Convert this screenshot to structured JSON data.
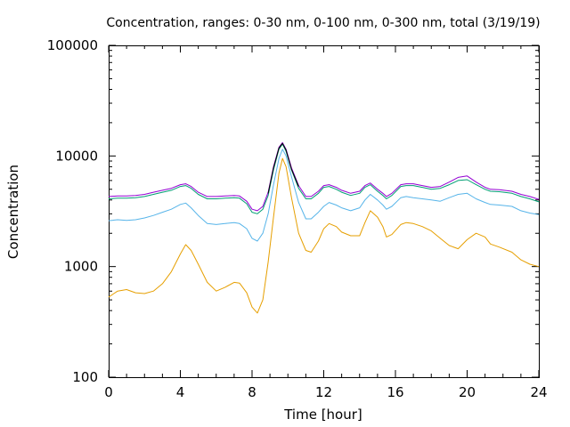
{
  "chart_data": {
    "type": "line",
    "title": "Concentration, ranges: 0-30 nm, 0-100 nm, 0-300 nm, total (3/19/19)",
    "xlabel": "Time [hour]",
    "ylabel": "Concentration",
    "xlim": [
      0,
      24
    ],
    "ylim": [
      100,
      100000
    ],
    "yscale": "log",
    "grid": false,
    "legend": "none",
    "xticks": [
      0,
      4,
      8,
      12,
      16,
      20,
      24
    ],
    "xtick_labels": [
      "0",
      "4",
      "8",
      "12",
      "16",
      "20",
      "24"
    ],
    "yticks": [
      100,
      1000,
      10000,
      100000
    ],
    "ytick_labels": [
      "100",
      "1000",
      "10000",
      "100000"
    ],
    "series": [
      {
        "color": "#e69f00",
        "points": [
          [
            0,
            530
          ],
          [
            0.5,
            600
          ],
          [
            1,
            620
          ],
          [
            1.5,
            580
          ],
          [
            2,
            570
          ],
          [
            2.5,
            600
          ],
          [
            3,
            700
          ],
          [
            3.5,
            900
          ],
          [
            4,
            1300
          ],
          [
            4.3,
            1580
          ],
          [
            4.6,
            1400
          ],
          [
            5,
            1050
          ],
          [
            5.5,
            720
          ],
          [
            6,
            600
          ],
          [
            6.5,
            650
          ],
          [
            7,
            720
          ],
          [
            7.3,
            710
          ],
          [
            7.7,
            580
          ],
          [
            8,
            430
          ],
          [
            8.3,
            380
          ],
          [
            8.6,
            500
          ],
          [
            8.9,
            1100
          ],
          [
            9.2,
            2800
          ],
          [
            9.5,
            7000
          ],
          [
            9.7,
            9500
          ],
          [
            9.9,
            8000
          ],
          [
            10.2,
            4200
          ],
          [
            10.6,
            2000
          ],
          [
            11,
            1400
          ],
          [
            11.3,
            1350
          ],
          [
            11.7,
            1700
          ],
          [
            12,
            2200
          ],
          [
            12.3,
            2450
          ],
          [
            12.7,
            2300
          ],
          [
            13,
            2050
          ],
          [
            13.5,
            1900
          ],
          [
            14,
            1900
          ],
          [
            14.3,
            2500
          ],
          [
            14.6,
            3200
          ],
          [
            15,
            2800
          ],
          [
            15.3,
            2300
          ],
          [
            15.5,
            1850
          ],
          [
            15.8,
            1950
          ],
          [
            16.3,
            2400
          ],
          [
            16.6,
            2500
          ],
          [
            17,
            2450
          ],
          [
            17.5,
            2300
          ],
          [
            18,
            2100
          ],
          [
            18.5,
            1800
          ],
          [
            19,
            1550
          ],
          [
            19.5,
            1450
          ],
          [
            20,
            1750
          ],
          [
            20.5,
            2000
          ],
          [
            21,
            1850
          ],
          [
            21.3,
            1600
          ],
          [
            21.8,
            1500
          ],
          [
            22.5,
            1350
          ],
          [
            23,
            1150
          ],
          [
            23.5,
            1050
          ],
          [
            24,
            1000
          ]
        ]
      },
      {
        "color": "#56b4e9",
        "points": [
          [
            0,
            2600
          ],
          [
            0.5,
            2650
          ],
          [
            1,
            2620
          ],
          [
            1.5,
            2650
          ],
          [
            2,
            2750
          ],
          [
            2.5,
            2900
          ],
          [
            3,
            3100
          ],
          [
            3.5,
            3300
          ],
          [
            4,
            3650
          ],
          [
            4.3,
            3750
          ],
          [
            4.6,
            3400
          ],
          [
            5,
            2900
          ],
          [
            5.5,
            2450
          ],
          [
            6,
            2400
          ],
          [
            6.5,
            2450
          ],
          [
            7,
            2500
          ],
          [
            7.3,
            2450
          ],
          [
            7.7,
            2200
          ],
          [
            8,
            1800
          ],
          [
            8.3,
            1700
          ],
          [
            8.6,
            2000
          ],
          [
            8.9,
            3000
          ],
          [
            9.2,
            5500
          ],
          [
            9.5,
            9500
          ],
          [
            9.7,
            11500
          ],
          [
            9.9,
            10000
          ],
          [
            10.2,
            6500
          ],
          [
            10.6,
            3800
          ],
          [
            11,
            2700
          ],
          [
            11.3,
            2700
          ],
          [
            11.7,
            3100
          ],
          [
            12,
            3500
          ],
          [
            12.3,
            3800
          ],
          [
            12.7,
            3600
          ],
          [
            13,
            3400
          ],
          [
            13.5,
            3200
          ],
          [
            14,
            3400
          ],
          [
            14.3,
            4000
          ],
          [
            14.6,
            4500
          ],
          [
            15,
            4000
          ],
          [
            15.3,
            3600
          ],
          [
            15.5,
            3300
          ],
          [
            15.8,
            3500
          ],
          [
            16.3,
            4200
          ],
          [
            16.6,
            4300
          ],
          [
            17,
            4200
          ],
          [
            17.5,
            4100
          ],
          [
            18,
            4000
          ],
          [
            18.5,
            3900
          ],
          [
            19,
            4200
          ],
          [
            19.5,
            4500
          ],
          [
            20,
            4600
          ],
          [
            20.5,
            4100
          ],
          [
            21,
            3800
          ],
          [
            21.3,
            3650
          ],
          [
            21.8,
            3600
          ],
          [
            22.5,
            3500
          ],
          [
            23,
            3200
          ],
          [
            23.5,
            3050
          ],
          [
            24,
            2950
          ]
        ]
      },
      {
        "color": "#009e73",
        "points": [
          [
            0,
            4100
          ],
          [
            0.5,
            4150
          ],
          [
            1,
            4150
          ],
          [
            1.5,
            4200
          ],
          [
            2,
            4300
          ],
          [
            2.5,
            4500
          ],
          [
            3,
            4700
          ],
          [
            3.5,
            4900
          ],
          [
            4,
            5300
          ],
          [
            4.3,
            5400
          ],
          [
            4.6,
            5100
          ],
          [
            5,
            4500
          ],
          [
            5.5,
            4100
          ],
          [
            6,
            4100
          ],
          [
            6.5,
            4150
          ],
          [
            7,
            4200
          ],
          [
            7.3,
            4150
          ],
          [
            7.7,
            3700
          ],
          [
            8,
            3100
          ],
          [
            8.3,
            3000
          ],
          [
            8.6,
            3300
          ],
          [
            8.9,
            4400
          ],
          [
            9.2,
            7500
          ],
          [
            9.5,
            11500
          ],
          [
            9.7,
            12800
          ],
          [
            9.9,
            11000
          ],
          [
            10.2,
            7500
          ],
          [
            10.6,
            5100
          ],
          [
            11,
            4100
          ],
          [
            11.3,
            4100
          ],
          [
            11.7,
            4600
          ],
          [
            12,
            5200
          ],
          [
            12.3,
            5300
          ],
          [
            12.7,
            5000
          ],
          [
            13,
            4700
          ],
          [
            13.5,
            4400
          ],
          [
            14,
            4600
          ],
          [
            14.3,
            5200
          ],
          [
            14.6,
            5500
          ],
          [
            15,
            4800
          ],
          [
            15.3,
            4400
          ],
          [
            15.5,
            4100
          ],
          [
            15.8,
            4400
          ],
          [
            16.3,
            5300
          ],
          [
            16.6,
            5400
          ],
          [
            17,
            5400
          ],
          [
            17.5,
            5200
          ],
          [
            18,
            5000
          ],
          [
            18.5,
            5100
          ],
          [
            19,
            5500
          ],
          [
            19.5,
            6000
          ],
          [
            20,
            6100
          ],
          [
            20.5,
            5500
          ],
          [
            21,
            5000
          ],
          [
            21.3,
            4800
          ],
          [
            21.8,
            4750
          ],
          [
            22.5,
            4600
          ],
          [
            23,
            4300
          ],
          [
            23.5,
            4100
          ],
          [
            24,
            3850
          ]
        ]
      },
      {
        "color": "#9400d3",
        "points": [
          [
            0,
            4300
          ],
          [
            0.5,
            4350
          ],
          [
            1,
            4350
          ],
          [
            1.5,
            4400
          ],
          [
            2,
            4500
          ],
          [
            2.5,
            4700
          ],
          [
            3,
            4900
          ],
          [
            3.5,
            5100
          ],
          [
            4,
            5500
          ],
          [
            4.3,
            5600
          ],
          [
            4.6,
            5300
          ],
          [
            5,
            4700
          ],
          [
            5.5,
            4300
          ],
          [
            6,
            4300
          ],
          [
            6.5,
            4350
          ],
          [
            7,
            4400
          ],
          [
            7.3,
            4350
          ],
          [
            7.7,
            3900
          ],
          [
            8,
            3300
          ],
          [
            8.3,
            3200
          ],
          [
            8.6,
            3500
          ],
          [
            8.9,
            4700
          ],
          [
            9.2,
            8000
          ],
          [
            9.5,
            12000
          ],
          [
            9.7,
            13200
          ],
          [
            9.9,
            11500
          ],
          [
            10.2,
            7800
          ],
          [
            10.6,
            5400
          ],
          [
            11,
            4300
          ],
          [
            11.3,
            4300
          ],
          [
            11.7,
            4800
          ],
          [
            12,
            5400
          ],
          [
            12.3,
            5500
          ],
          [
            12.7,
            5200
          ],
          [
            13,
            4900
          ],
          [
            13.5,
            4600
          ],
          [
            14,
            4800
          ],
          [
            14.3,
            5400
          ],
          [
            14.6,
            5700
          ],
          [
            15,
            5000
          ],
          [
            15.3,
            4600
          ],
          [
            15.5,
            4300
          ],
          [
            15.8,
            4600
          ],
          [
            16.3,
            5500
          ],
          [
            16.6,
            5600
          ],
          [
            17,
            5600
          ],
          [
            17.5,
            5400
          ],
          [
            18,
            5200
          ],
          [
            18.5,
            5300
          ],
          [
            19,
            5800
          ],
          [
            19.5,
            6400
          ],
          [
            20,
            6600
          ],
          [
            20.5,
            5800
          ],
          [
            21,
            5200
          ],
          [
            21.3,
            5000
          ],
          [
            21.8,
            4950
          ],
          [
            22.5,
            4800
          ],
          [
            23,
            4500
          ],
          [
            23.5,
            4300
          ],
          [
            24,
            4050
          ]
        ]
      },
      {
        "color": "#000000",
        "points": [
          [
            8.9,
            4600
          ],
          [
            9.2,
            7800
          ],
          [
            9.5,
            11800
          ],
          [
            9.7,
            13000
          ],
          [
            9.9,
            11300
          ],
          [
            10.2,
            7600
          ],
          [
            10.6,
            5300
          ]
        ]
      }
    ]
  }
}
